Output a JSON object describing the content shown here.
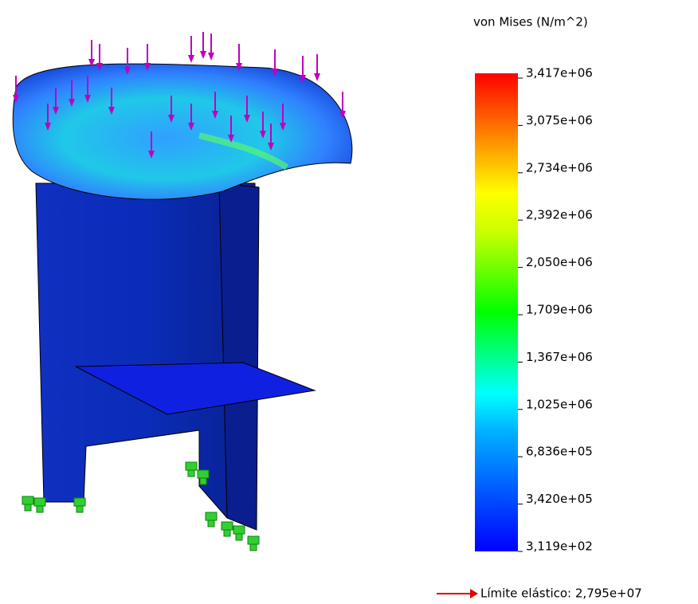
{
  "legend": {
    "title": "von Mises (N/m^2)",
    "ticks": [
      "3,417e+06",
      "3,075e+06",
      "2,734e+06",
      "2,392e+06",
      "2,050e+06",
      "1,709e+06",
      "1,367e+06",
      "1,025e+06",
      "6,836e+05",
      "3,420e+05",
      "3,119e+02"
    ],
    "yield_label": "Límite elástico: 2,795e+07"
  }
}
